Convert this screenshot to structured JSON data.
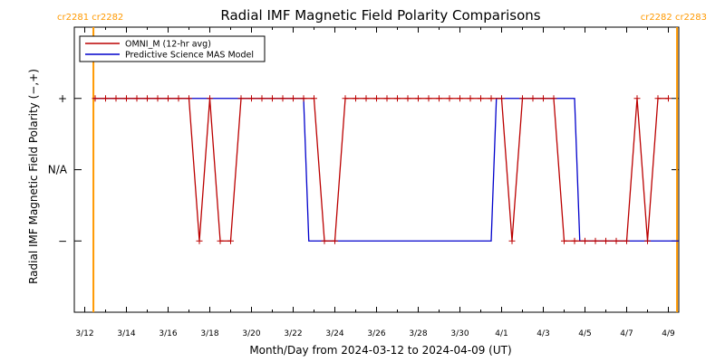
{
  "chart_data": {
    "type": "line",
    "title": "Radial IMF Magnetic Field Polarity Comparisons",
    "xlabel": "Month/Day from 2024-03-12 to 2024-04-09 (UT)",
    "ylabel": "Radial IMF Magnetic Field Polarity (−,+)",
    "x_tick_labels": [
      "3/12",
      "3/14",
      "3/16",
      "3/18",
      "3/20",
      "3/22",
      "3/24",
      "3/26",
      "3/28",
      "3/30",
      "4/1",
      "4/3",
      "4/5",
      "4/7",
      "4/9"
    ],
    "y_tick_labels": [
      "+",
      "N/A",
      "−"
    ],
    "y_categories": {
      "plus": 1,
      "na": 0,
      "minus": -1
    },
    "ylim": [
      -2,
      2
    ],
    "legend_placement": "top-left",
    "carrington_markers": {
      "left": "cr2281 cr2282",
      "right": "cr2282 cr2283",
      "color": "#ff9900"
    },
    "series": [
      {
        "name": "OMNI_M (12-hr avg)",
        "color": "#bb0000",
        "marker": "+",
        "x": [
          "2024-03-12T12:00",
          "2024-03-13T00:00",
          "2024-03-13T12:00",
          "2024-03-14T00:00",
          "2024-03-14T12:00",
          "2024-03-15T00:00",
          "2024-03-15T12:00",
          "2024-03-16T00:00",
          "2024-03-16T12:00",
          "2024-03-17T00:00",
          "2024-03-17T12:00",
          "2024-03-18T00:00",
          "2024-03-18T12:00",
          "2024-03-19T00:00",
          "2024-03-19T12:00",
          "2024-03-20T00:00",
          "2024-03-20T12:00",
          "2024-03-21T00:00",
          "2024-03-21T12:00",
          "2024-03-22T00:00",
          "2024-03-22T12:00",
          "2024-03-23T00:00",
          "2024-03-23T12:00",
          "2024-03-24T00:00",
          "2024-03-24T12:00",
          "2024-03-25T00:00",
          "2024-03-25T12:00",
          "2024-03-26T00:00",
          "2024-03-26T12:00",
          "2024-03-27T00:00",
          "2024-03-27T12:00",
          "2024-03-28T00:00",
          "2024-03-28T12:00",
          "2024-03-29T00:00",
          "2024-03-29T12:00",
          "2024-03-30T00:00",
          "2024-03-30T12:00",
          "2024-03-31T00:00",
          "2024-03-31T12:00",
          "2024-04-01T00:00",
          "2024-04-01T12:00",
          "2024-04-02T00:00",
          "2024-04-02T12:00",
          "2024-04-03T00:00",
          "2024-04-03T12:00",
          "2024-04-04T00:00",
          "2024-04-04T12:00",
          "2024-04-05T00:00",
          "2024-04-05T12:00",
          "2024-04-06T00:00",
          "2024-04-06T12:00",
          "2024-04-07T00:00",
          "2024-04-07T12:00",
          "2024-04-08T00:00",
          "2024-04-08T12:00",
          "2024-04-09T00:00"
        ],
        "y": [
          1,
          1,
          1,
          1,
          1,
          1,
          1,
          1,
          1,
          1,
          -1,
          1,
          -1,
          -1,
          1,
          1,
          1,
          1,
          1,
          1,
          1,
          1,
          -1,
          -1,
          1,
          1,
          1,
          1,
          1,
          1,
          1,
          1,
          1,
          1,
          1,
          1,
          1,
          1,
          1,
          1,
          -1,
          1,
          1,
          1,
          1,
          -1,
          -1,
          -1,
          -1,
          -1,
          -1,
          -1,
          1,
          -1,
          1,
          1
        ]
      },
      {
        "name": "Predictive Science MAS Model",
        "color": "#0000cc",
        "marker": "none",
        "x": [
          "2024-03-12T10:00",
          "2024-03-22T12:00",
          "2024-03-22T18:00",
          "2024-03-31T12:00",
          "2024-03-31T18:00",
          "2024-04-04T12:00",
          "2024-04-04T18:00",
          "2024-04-09T12:00"
        ],
        "y": [
          1,
          1,
          -1,
          -1,
          1,
          1,
          -1,
          -1
        ]
      }
    ]
  }
}
